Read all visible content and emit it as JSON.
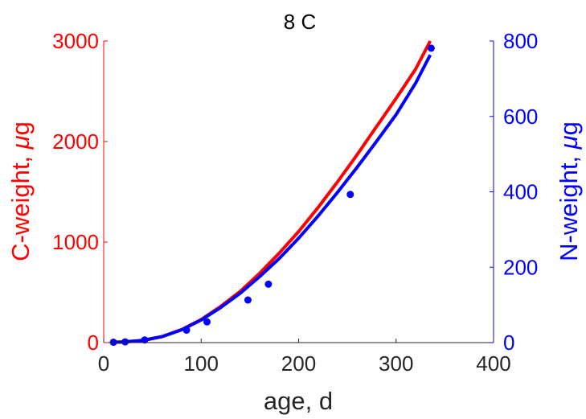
{
  "chart_data": {
    "type": "line",
    "title": "8 C",
    "xlabel": "age, d",
    "ylabel_left": {
      "text": "C-weight, ",
      "mu": "μ",
      "unit": "g"
    },
    "ylabel_right": {
      "text": "N-weight, ",
      "mu": "μ",
      "unit": "g"
    },
    "xlim": [
      0,
      400
    ],
    "ylim_left": [
      0,
      3000
    ],
    "ylim_right": [
      0,
      800
    ],
    "x_ticks": [
      "0",
      "100",
      "200",
      "300",
      "400"
    ],
    "y_left_ticks": [
      "0",
      "1000",
      "2000",
      "3000"
    ],
    "y_right_ticks": [
      "0",
      "200",
      "400",
      "600",
      "800"
    ],
    "grid": false,
    "colors": {
      "carbon": "#ff0000",
      "nitrogen": "#0000ff",
      "axis_x": "#262626"
    },
    "series": [
      {
        "axis": "left",
        "color": "#ff0000",
        "style": "line",
        "x": [
          8,
          20,
          40,
          60,
          80,
          100,
          120,
          140,
          160,
          180,
          200,
          220,
          240,
          260,
          280,
          300,
          320,
          335
        ],
        "y": [
          2,
          5,
          20,
          60,
          130,
          230,
          360,
          510,
          690,
          890,
          1105,
          1345,
          1600,
          1870,
          2150,
          2430,
          2720,
          3000
        ]
      },
      {
        "axis": "right",
        "style": "line",
        "color": "#0000ff",
        "x": [
          8,
          20,
          40,
          60,
          80,
          100,
          120,
          140,
          160,
          180,
          200,
          220,
          240,
          260,
          280,
          300,
          320,
          335
        ],
        "y": [
          1,
          2,
          6,
          16,
          34,
          60,
          93,
          131,
          175,
          223,
          277,
          336,
          399,
          465,
          534,
          605,
          688,
          763
        ]
      },
      {
        "axis": "right",
        "style": "scatter",
        "color": "#0000ff",
        "x": [
          10,
          22,
          42,
          85,
          106,
          148,
          169,
          253,
          336
        ],
        "y": [
          1,
          2,
          7,
          33,
          55,
          113,
          155,
          393,
          781
        ]
      }
    ]
  }
}
